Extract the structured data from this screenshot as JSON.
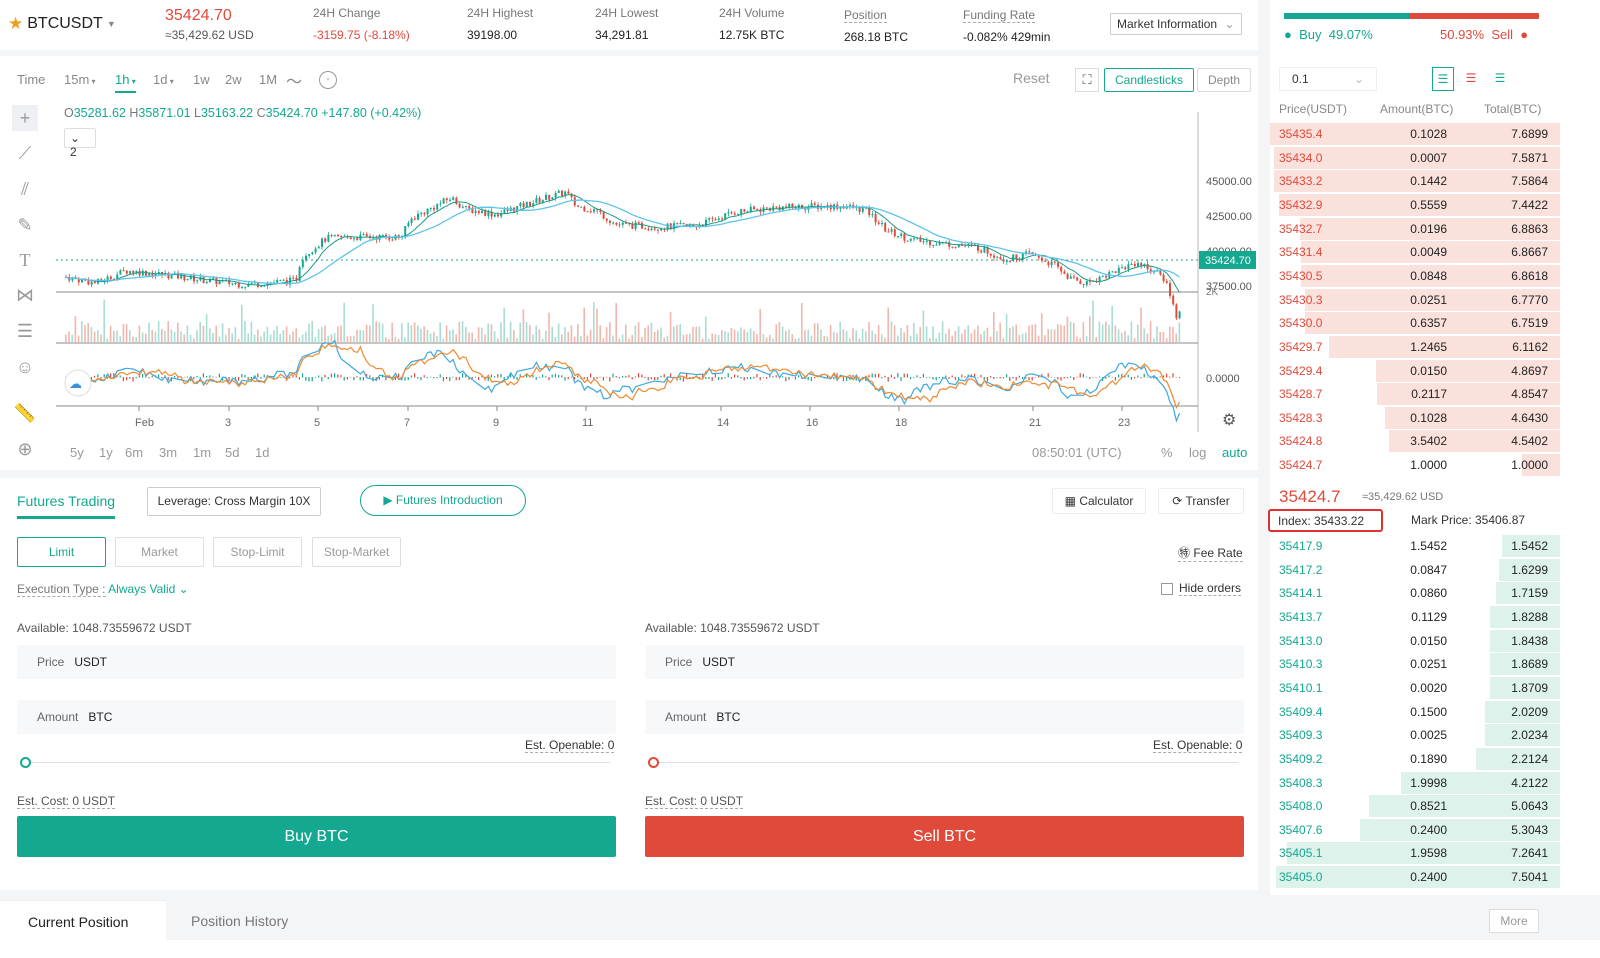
{
  "header": {
    "symbol": "BTCUSDT",
    "last_price": "35424.70",
    "last_price_usd": "≈35,429.62 USD",
    "stats": [
      {
        "label": "24H Change",
        "value": "-3159.75 (-8.18%)"
      },
      {
        "label": "24H Highest",
        "value": "39198.00"
      },
      {
        "label": "24H Lowest",
        "value": "34,291.81"
      },
      {
        "label": "24H Volume",
        "value": "12.75K BTC"
      },
      {
        "label": "Position",
        "value": "268.18 BTC"
      },
      {
        "label": "Funding Rate",
        "value": "-0.082% 429min"
      }
    ],
    "market_info": "Market Information"
  },
  "chart_toolbar": {
    "time_label": "Time",
    "timeframes": [
      "15m",
      "1h",
      "1d",
      "1w",
      "2w",
      "1M"
    ],
    "reset": "Reset",
    "candlesticks": "Candlesticks",
    "depth": "Depth"
  },
  "ohlc": {
    "o": "35281.62",
    "h": "35871.01",
    "l": "35163.22",
    "c": "35424.70",
    "chg": "+147.80 (+0.42%)"
  },
  "indicator_count": "2",
  "price_axis": [
    "45000.00",
    "42500.00",
    "40000.00",
    "37500.00"
  ],
  "current_price_tag": "35424.70",
  "volume_axis": "2K",
  "macd_axis": "0.0000",
  "date_axis": [
    "Feb",
    "3",
    "5",
    "7",
    "9",
    "11",
    "14",
    "16",
    "18",
    "21",
    "23"
  ],
  "ranges": [
    "5y",
    "1y",
    "6m",
    "3m",
    "1m",
    "5d",
    "1d"
  ],
  "chart_footer": {
    "time": "08:50:01 (UTC)",
    "percent": "%",
    "log": "log",
    "auto": "auto"
  },
  "order": {
    "tab": "Futures Trading",
    "leverage": "Leverage: Cross Margin 10X",
    "intro": "Futures Introduction",
    "calculator": "Calculator",
    "transfer": "Transfer",
    "types": [
      "Limit",
      "Market",
      "Stop-Limit",
      "Stop-Market"
    ],
    "fee_rate": "Fee Rate",
    "execution_label": "Execution Type :",
    "execution_value": "Always Valid",
    "hide_orders": "Hide orders",
    "available": "Available: 1048.73559672 USDT",
    "price_label": "Price",
    "price_unit": "USDT",
    "amount_label": "Amount",
    "amount_unit": "BTC",
    "est_openable": "Est. Openable: 0",
    "est_cost": "Est. Cost: 0 USDT",
    "buy": "Buy BTC",
    "sell": "Sell BTC"
  },
  "positions": {
    "current": "Current Position",
    "history": "Position History",
    "more": "More"
  },
  "book": {
    "buy_label": "Buy",
    "buy_pct": "49.07%",
    "sell_pct": "50.93%",
    "sell_label": "Sell",
    "buy_ratio": 0.4907,
    "precision": "0.1",
    "headers": [
      "Price(USDT)",
      "Amount(BTC)",
      "Total(BTC)"
    ],
    "asks": [
      [
        "35435.4",
        "0.1028",
        "7.6899",
        1.0
      ],
      [
        "35434.0",
        "0.0007",
        "7.5871",
        0.987
      ],
      [
        "35433.2",
        "0.1442",
        "7.5864",
        0.987
      ],
      [
        "35432.9",
        "0.5559",
        "7.4422",
        0.968
      ],
      [
        "35432.7",
        "0.0196",
        "6.8863",
        0.896
      ],
      [
        "35431.4",
        "0.0049",
        "6.8667",
        0.893
      ],
      [
        "35430.5",
        "0.0848",
        "6.8618",
        0.892
      ],
      [
        "35430.3",
        "0.0251",
        "6.7770",
        0.881
      ],
      [
        "35430.0",
        "0.6357",
        "6.7519",
        0.878
      ],
      [
        "35429.7",
        "1.2465",
        "6.1162",
        0.795
      ],
      [
        "35429.4",
        "0.0150",
        "4.8697",
        0.633
      ],
      [
        "35428.7",
        "0.2117",
        "4.8547",
        0.631
      ],
      [
        "35428.3",
        "0.1028",
        "4.6430",
        0.604
      ],
      [
        "35424.8",
        "3.5402",
        "4.5402",
        0.59
      ],
      [
        "35424.7",
        "1.0000",
        "1.0000",
        0.13
      ]
    ],
    "mid_price": "35424.7",
    "mid_usd": "≈35,429.62 USD",
    "index": "Index: 35433.22",
    "mark": "Mark Price: 35406.87",
    "bids": [
      [
        "35417.9",
        "1.5452",
        "1.5452",
        0.2
      ],
      [
        "35417.2",
        "0.0847",
        "1.6299",
        0.21
      ],
      [
        "35414.1",
        "0.0860",
        "1.7159",
        0.22
      ],
      [
        "35413.7",
        "0.1129",
        "1.8288",
        0.24
      ],
      [
        "35413.0",
        "0.0150",
        "1.8438",
        0.24
      ],
      [
        "35410.3",
        "0.0251",
        "1.8689",
        0.24
      ],
      [
        "35410.1",
        "0.0020",
        "1.8709",
        0.24
      ],
      [
        "35409.4",
        "0.1500",
        "2.0209",
        0.26
      ],
      [
        "35409.3",
        "0.0025",
        "2.0234",
        0.26
      ],
      [
        "35409.2",
        "0.1890",
        "2.2124",
        0.29
      ],
      [
        "35408.3",
        "1.9998",
        "4.2122",
        0.55
      ],
      [
        "35408.0",
        "0.8521",
        "5.0643",
        0.66
      ],
      [
        "35407.6",
        "0.2400",
        "5.3043",
        0.69
      ],
      [
        "35405.1",
        "1.9598",
        "7.2641",
        0.94
      ],
      [
        "35405.0",
        "0.2400",
        "7.5041",
        0.98
      ]
    ]
  },
  "colors": {
    "green": "#13a88f",
    "red": "#e04a3a"
  }
}
